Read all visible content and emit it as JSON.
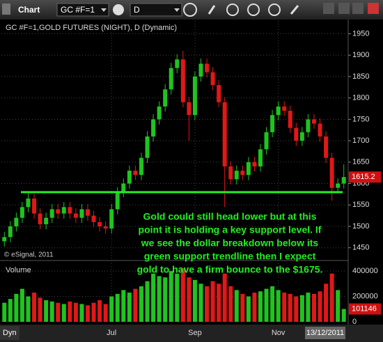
{
  "toolbar": {
    "title": "Chart",
    "symbol": "GC #F=1",
    "interval": "D"
  },
  "footer": {
    "mode": "Dyn",
    "date": "13/12/2011"
  },
  "chart_data": {
    "type": "candlestick",
    "title": "GC #F=1,GOLD FUTURES (NIGHT), D (Dynamic)",
    "watermark": "© eSignal, 2011",
    "categories": [
      null,
      null,
      null,
      null,
      null,
      null,
      null,
      null,
      null,
      null,
      null,
      null,
      null,
      null,
      null,
      null,
      null,
      null,
      "Jul",
      null,
      null,
      null,
      null,
      null,
      null,
      null,
      null,
      null,
      null,
      null,
      null,
      null,
      "Sep",
      null,
      null,
      null,
      null,
      null,
      null,
      null,
      null,
      null,
      null,
      null,
      null,
      null,
      "Nov",
      null,
      null,
      null,
      null,
      null,
      null,
      null,
      null,
      null,
      null,
      null
    ],
    "open": [
      1465,
      1475,
      1500,
      1520,
      1545,
      1565,
      1530,
      1505,
      1520,
      1540,
      1530,
      1545,
      1530,
      1520,
      1540,
      1525,
      1510,
      1500,
      1495,
      1540,
      1580,
      1600,
      1630,
      1620,
      1660,
      1710,
      1750,
      1780,
      1820,
      1870,
      1890,
      1790,
      1760,
      1850,
      1880,
      1860,
      1830,
      1790,
      1640,
      1610,
      1630,
      1620,
      1650,
      1640,
      1680,
      1720,
      1760,
      1780,
      1770,
      1730,
      1700,
      1720,
      1750,
      1740,
      1710,
      1660,
      1590,
      1600
    ],
    "high": [
      1487,
      1512,
      1532,
      1557,
      1577,
      1577,
      1542,
      1532,
      1552,
      1552,
      1557,
      1557,
      1542,
      1552,
      1552,
      1537,
      1522,
      1512,
      1552,
      1592,
      1612,
      1642,
      1642,
      1672,
      1722,
      1762,
      1792,
      1832,
      1882,
      1902,
      1910,
      1802,
      1862,
      1892,
      1892,
      1872,
      1842,
      1802,
      1652,
      1642,
      1642,
      1662,
      1662,
      1692,
      1732,
      1772,
      1792,
      1792,
      1782,
      1742,
      1732,
      1762,
      1762,
      1752,
      1722,
      1672,
      1612,
      1645
    ],
    "low": [
      1453,
      1463,
      1488,
      1508,
      1533,
      1518,
      1493,
      1493,
      1508,
      1518,
      1518,
      1518,
      1508,
      1508,
      1513,
      1498,
      1488,
      1483,
      1483,
      1528,
      1568,
      1588,
      1608,
      1608,
      1648,
      1698,
      1738,
      1768,
      1808,
      1858,
      1778,
      1700,
      1748,
      1838,
      1848,
      1818,
      1778,
      1545,
      1598,
      1598,
      1608,
      1608,
      1628,
      1628,
      1668,
      1708,
      1748,
      1758,
      1718,
      1688,
      1688,
      1708,
      1728,
      1698,
      1648,
      1560,
      1578,
      1588
    ],
    "close": [
      1475,
      1500,
      1520,
      1545,
      1565,
      1530,
      1505,
      1520,
      1540,
      1530,
      1545,
      1530,
      1520,
      1540,
      1525,
      1510,
      1500,
      1495,
      1540,
      1580,
      1600,
      1630,
      1620,
      1660,
      1710,
      1750,
      1780,
      1820,
      1870,
      1890,
      1790,
      1760,
      1850,
      1880,
      1860,
      1830,
      1790,
      1640,
      1610,
      1630,
      1620,
      1650,
      1640,
      1680,
      1720,
      1760,
      1780,
      1770,
      1730,
      1700,
      1720,
      1750,
      1740,
      1710,
      1660,
      1590,
      1600,
      1615.2
    ],
    "up_color": "#1fc41f",
    "down_color": "#e01818",
    "ylim": [
      1430,
      1980
    ],
    "yticks": [
      1450,
      1500,
      1550,
      1600,
      1650,
      1700,
      1750,
      1800,
      1850,
      1900,
      1950
    ],
    "grid": true,
    "support_level": 1580,
    "support_color": "#22ee22",
    "annotation": [
      "Gold could still head lower but at this",
      "point it is holding a key support level. If",
      "we see the dollar breakdown below its",
      "green support trendline then I expect",
      "gold to have a firm bounce to the $1675."
    ],
    "annotation_color": "#22ee22",
    "volume_label": "Volume",
    "volume": [
      150000,
      180000,
      220000,
      260000,
      200000,
      230000,
      190000,
      170000,
      160000,
      150000,
      140000,
      160000,
      150000,
      140000,
      130000,
      150000,
      170000,
      140000,
      200000,
      220000,
      250000,
      230000,
      260000,
      280000,
      320000,
      380000,
      360000,
      350000,
      400000,
      380000,
      420000,
      350000,
      330000,
      300000,
      280000,
      320000,
      300000,
      380000,
      280000,
      250000,
      220000,
      200000,
      230000,
      240000,
      260000,
      280000,
      250000,
      230000,
      220000,
      200000,
      210000,
      230000,
      220000,
      240000,
      300000,
      380000,
      250000,
      101146
    ],
    "vlim": [
      0,
      450000
    ],
    "vticks": [
      0,
      200000,
      400000
    ]
  }
}
